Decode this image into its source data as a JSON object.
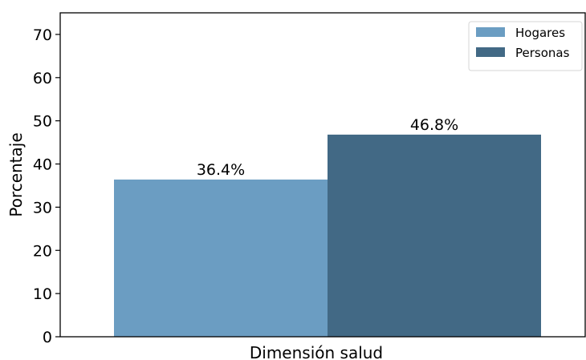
{
  "chart_data": {
    "type": "bar",
    "categories": [
      "Dimensión salud"
    ],
    "series": [
      {
        "name": "Hogares",
        "values": [
          36.4
        ],
        "color": "#6b9dc2",
        "label": "36.4%"
      },
      {
        "name": "Personas",
        "values": [
          46.8
        ],
        "color": "#426985",
        "label": "46.8%"
      }
    ],
    "title": "",
    "xlabel": "Dimensión salud",
    "ylabel": "Porcentaje",
    "ylim": [
      0,
      75
    ],
    "yticks": [
      0,
      10,
      20,
      30,
      40,
      50,
      60,
      70
    ],
    "grid": false,
    "legend_position": "top-right"
  }
}
